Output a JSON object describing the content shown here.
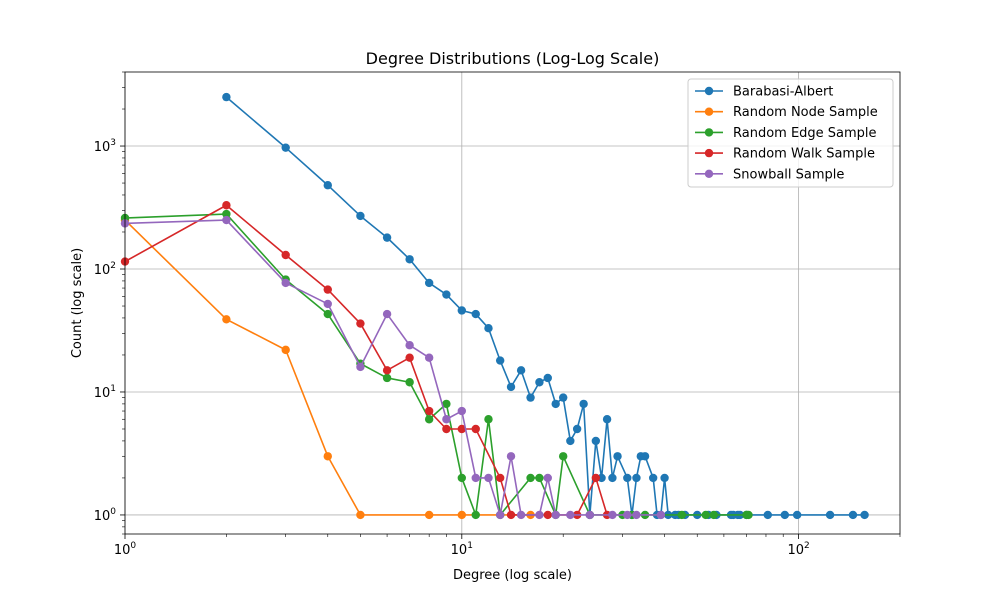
{
  "chart_data": {
    "type": "line",
    "title": "Degree Distributions (Log-Log Scale)",
    "xlabel": "Degree (log scale)",
    "ylabel": "Count (log scale)",
    "xscale": "log",
    "yscale": "log",
    "xlim": [
      1,
      200
    ],
    "ylim": [
      0.7,
      4000
    ],
    "grid": true,
    "legend_position": "top-right",
    "x_ticks": [
      {
        "value": 1,
        "base": "10",
        "exp": "0"
      },
      {
        "value": 10,
        "base": "10",
        "exp": "1"
      },
      {
        "value": 100,
        "base": "10",
        "exp": "2"
      }
    ],
    "y_ticks": [
      {
        "value": 1,
        "base": "10",
        "exp": "0"
      },
      {
        "value": 10,
        "base": "10",
        "exp": "1"
      },
      {
        "value": 100,
        "base": "10",
        "exp": "2"
      },
      {
        "value": 1000,
        "base": "10",
        "exp": "3"
      }
    ],
    "series": [
      {
        "name": "Barabasi-Albert",
        "color": "#1f77b4",
        "x": [
          2,
          3,
          4,
          5,
          6,
          7,
          8,
          9,
          10,
          11,
          12,
          13,
          14,
          15,
          16,
          17,
          18,
          19,
          20,
          21,
          22,
          23,
          24,
          25,
          26,
          27,
          28,
          29,
          31,
          32,
          33,
          34,
          35,
          37,
          38,
          39,
          40,
          41,
          43,
          44,
          46,
          50,
          54,
          57,
          63,
          64,
          66,
          67,
          70,
          81,
          91,
          99,
          124,
          145,
          157
        ],
        "y": [
          2500,
          970,
          480,
          270,
          180,
          120,
          77,
          62,
          46,
          43,
          33,
          18,
          11,
          15,
          9,
          12,
          13,
          8,
          9,
          4,
          5,
          8,
          1,
          4,
          2,
          6,
          2,
          3,
          2,
          1,
          2,
          3,
          3,
          2,
          1,
          1,
          2,
          1,
          1,
          1,
          1,
          1,
          1,
          1,
          1,
          1,
          1,
          1,
          1,
          1,
          1,
          1,
          1,
          1,
          1
        ]
      },
      {
        "name": "Random Node Sample",
        "color": "#ff7f0e",
        "x": [
          1,
          2,
          3,
          4,
          5,
          8,
          10,
          16
        ],
        "y": [
          250,
          39,
          22,
          3,
          1,
          1,
          1,
          1
        ]
      },
      {
        "name": "Random Edge Sample",
        "color": "#2ca02c",
        "x": [
          1,
          2,
          3,
          4,
          5,
          6,
          7,
          8,
          9,
          10,
          11,
          12,
          13,
          16,
          17,
          19,
          20,
          24,
          30,
          32,
          35,
          45,
          53,
          56,
          70,
          71
        ],
        "y": [
          260,
          280,
          82,
          43,
          17,
          13,
          12,
          6,
          8,
          2,
          1,
          6,
          1,
          2,
          2,
          1,
          3,
          1,
          1,
          1,
          1,
          1,
          1,
          1,
          1,
          1
        ]
      },
      {
        "name": "Random Walk Sample",
        "color": "#d62728",
        "x": [
          1,
          2,
          3,
          4,
          5,
          6,
          7,
          8,
          9,
          10,
          11,
          13,
          14,
          18,
          22,
          25,
          27
        ],
        "y": [
          115,
          330,
          130,
          68,
          36,
          15,
          19,
          7,
          5,
          5,
          5,
          2,
          1,
          1,
          1,
          2,
          1
        ]
      },
      {
        "name": "Snowball Sample",
        "color": "#9467bd",
        "x": [
          1,
          2,
          3,
          4,
          5,
          6,
          7,
          8,
          9,
          10,
          11,
          12,
          13,
          14,
          15,
          17,
          18,
          19,
          21,
          24,
          28,
          31,
          33,
          39
        ],
        "y": [
          235,
          250,
          77,
          52,
          16,
          43,
          24,
          19,
          6,
          7,
          2,
          2,
          1,
          3,
          1,
          1,
          2,
          1,
          1,
          1,
          1,
          1,
          1,
          1
        ]
      }
    ]
  }
}
